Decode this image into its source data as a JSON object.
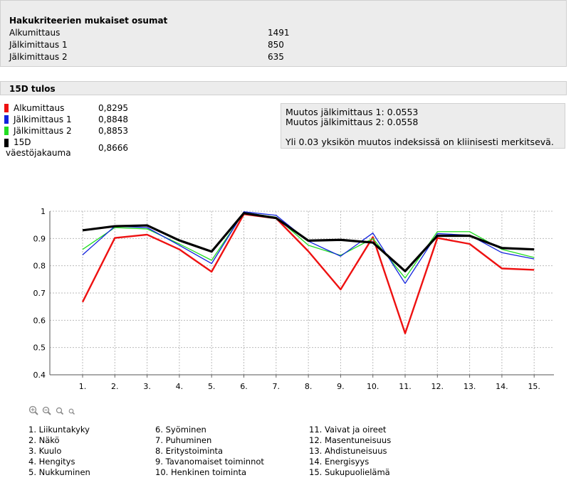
{
  "summary": {
    "title": "Hakukriteerien mukaiset osumat",
    "rows": [
      {
        "label": "Alkumittaus",
        "value": "1491"
      },
      {
        "label": "Jälkimittaus 1",
        "value": "850"
      },
      {
        "label": "Jälkimittaus 2",
        "value": "635"
      }
    ]
  },
  "tulos": {
    "title": "15D tulos",
    "legend": [
      {
        "label": "Alkumittaus",
        "value": "0,8295",
        "color": "#ee1111"
      },
      {
        "label": "Jälkimittaus 1",
        "value": "0,8848",
        "color": "#1122dd"
      },
      {
        "label": "Jälkimittaus 2",
        "value": "0,8853",
        "color": "#22dd22"
      },
      {
        "label": "15D",
        "label2": "väestöjakauma",
        "value": "0,8666",
        "color": "#000000"
      }
    ]
  },
  "muutos": {
    "line1": "Muutos jälkimittaus 1: 0.0553",
    "line2": "Muutos jälkimittaus 2: 0.0558",
    "note": "Yli 0.03 yksikön muutos indeksissä on kliinisesti merkitsevä."
  },
  "zoom_icons": [
    "zoom-in-icon",
    "zoom-in-small-icon",
    "zoom-out-icon",
    "zoom-reset-icon"
  ],
  "chart_data": {
    "type": "line",
    "categories": [
      "1.",
      "2.",
      "3.",
      "4.",
      "5.",
      "6.",
      "7.",
      "8.",
      "9.",
      "10.",
      "11.",
      "12.",
      "13.",
      "14.",
      "15."
    ],
    "ylim": [
      0.4,
      1.0
    ],
    "yticks": [
      "0.4",
      "0.5",
      "0.6",
      "0.7",
      "0.8",
      "0.9",
      "1"
    ],
    "grid": true,
    "series": [
      {
        "name": "Alkumittaus",
        "color": "#ee1111",
        "values": [
          0.667,
          0.902,
          0.914,
          0.86,
          0.778,
          0.989,
          0.974,
          0.853,
          0.713,
          0.905,
          0.552,
          0.902,
          0.88,
          0.79,
          0.785
        ]
      },
      {
        "name": "Jälkimittaus 2",
        "color": "#22dd22",
        "values": [
          0.86,
          0.94,
          0.935,
          0.88,
          0.82,
          0.995,
          0.978,
          0.875,
          0.838,
          0.9,
          0.755,
          0.925,
          0.925,
          0.86,
          0.83
        ]
      },
      {
        "name": "Jälkimittaus 1",
        "color": "#1122dd",
        "values": [
          0.84,
          0.945,
          0.94,
          0.875,
          0.808,
          0.998,
          0.985,
          0.89,
          0.835,
          0.92,
          0.735,
          0.918,
          0.912,
          0.848,
          0.825
        ]
      },
      {
        "name": "15D väestöjakauma",
        "color": "#000000",
        "values": [
          0.93,
          0.945,
          0.948,
          0.893,
          0.852,
          0.993,
          0.975,
          0.892,
          0.895,
          0.885,
          0.78,
          0.91,
          0.91,
          0.865,
          0.86
        ]
      }
    ],
    "category_names": [
      "1. Liikuntakyky",
      "2. Näkö",
      "3. Kuulo",
      "4. Hengitys",
      "5. Nukkuminen",
      "6. Syöminen",
      "7. Puhuminen",
      "8. Eritystoiminta",
      "9. Tavanomaiset toiminnot",
      "10. Henkinen toiminta",
      "11. Vaivat ja oireet",
      "12. Masentuneisuus",
      "13. Ahdistuneisuus",
      "14. Energisyys",
      "15. Sukupuolielämä"
    ]
  }
}
